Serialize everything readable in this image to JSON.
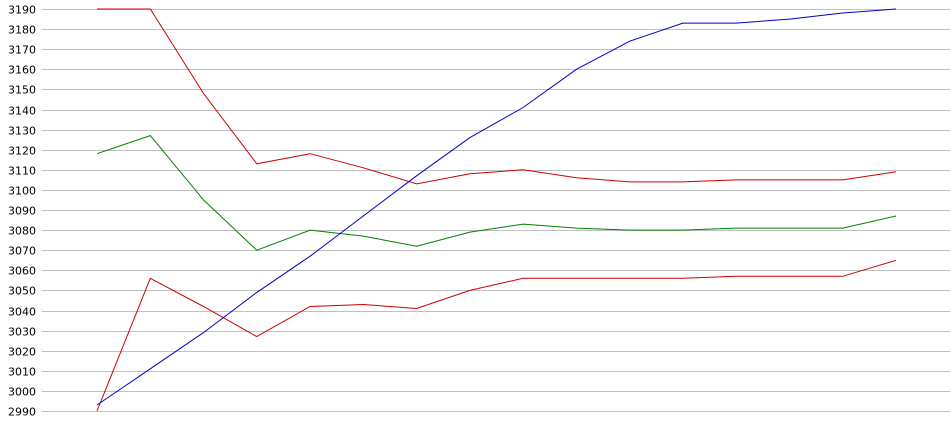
{
  "chart_data": {
    "type": "line",
    "title": "",
    "xlabel": "",
    "ylabel": "",
    "ylim": [
      2990,
      3190
    ],
    "y_ticks": [
      2990,
      3000,
      3010,
      3020,
      3030,
      3040,
      3050,
      3060,
      3070,
      3080,
      3090,
      3100,
      3110,
      3120,
      3130,
      3140,
      3150,
      3160,
      3170,
      3180,
      3190
    ],
    "grid": true,
    "legend": "none",
    "x": [
      1,
      2,
      3,
      4,
      5,
      6,
      7,
      8,
      9,
      10,
      11,
      12,
      13,
      14,
      15,
      16
    ],
    "series": [
      {
        "color": "#cc0000",
        "values": [
          3190,
          3190,
          3148,
          3113,
          3118,
          3111,
          3103,
          3108,
          3110,
          3106,
          3104,
          3104,
          3105,
          3105,
          3105,
          3109
        ]
      },
      {
        "color": "#008000",
        "values": [
          3118,
          3127,
          3095,
          3070,
          3080,
          3077,
          3072,
          3079,
          3083,
          3081,
          3080,
          3080,
          3081,
          3081,
          3081,
          3087
        ]
      },
      {
        "color": "#cc0000",
        "values": [
          2990,
          3056,
          3042,
          3027,
          3042,
          3043,
          3041,
          3050,
          3056,
          3056,
          3056,
          3056,
          3057,
          3057,
          3057,
          3065
        ]
      },
      {
        "color": "#0000cc",
        "values": [
          2993,
          3011,
          3029,
          3049,
          3067,
          3087,
          3107,
          3126,
          3141,
          3160,
          3174,
          3183,
          3183,
          3185,
          3188,
          3190
        ]
      }
    ]
  }
}
